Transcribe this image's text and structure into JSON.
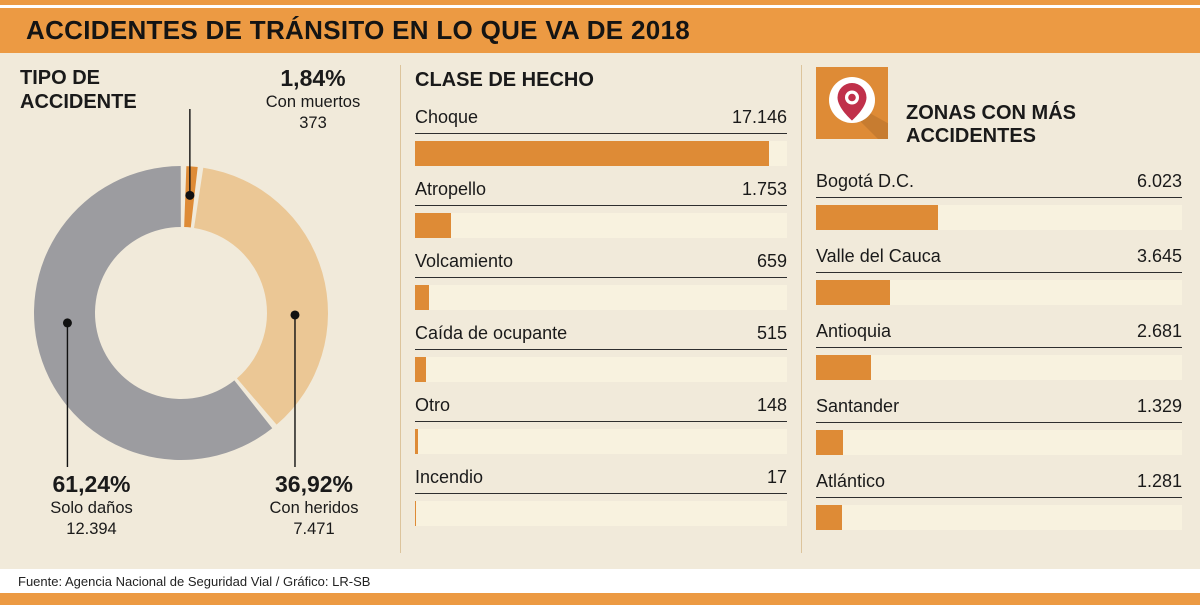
{
  "header": {
    "title": "ACCIDENTES DE TRÁNSITO EN LO QUE VA DE 2018"
  },
  "footer": {
    "source": "Fuente: Agencia Nacional de Seguridad Vial / Gráfico: LR-SB"
  },
  "colors": {
    "header_orange": "#EC9A43",
    "orange": "#DE8B36",
    "tan": "#EBC795",
    "gray": "#9C9CA0",
    "cream": "#F1EADA",
    "track": "#F8F2DF",
    "divider": "#DCC49C",
    "pin_red": "#C0304A",
    "text_dark": "#1A1A1A"
  },
  "chart_data": [
    {
      "type": "pie",
      "title": "TIPO DE ACCIDENTE",
      "donut": true,
      "start_angle": 1,
      "slices": [
        {
          "label": "Con muertos",
          "pct_label": "1,84%",
          "value_label": "373",
          "value": 1.84,
          "color_key": "orange"
        },
        {
          "label": "Con heridos",
          "pct_label": "36,92%",
          "value_label": "7.471",
          "value": 36.92,
          "color_key": "tan"
        },
        {
          "label": "Solo daños",
          "pct_label": "61,24%",
          "value_label": "12.394",
          "value": 61.24,
          "color_key": "gray"
        }
      ]
    },
    {
      "type": "bar",
      "title": "CLASE DE HECHO",
      "orientation": "horizontal",
      "categories": [
        "Choque",
        "Atropello",
        "Volcamiento",
        "Caída de ocupante",
        "Otro",
        "Incendio"
      ],
      "values": [
        17146,
        1753,
        659,
        515,
        148,
        17
      ],
      "value_labels": [
        "17.146",
        "1.753",
        "659",
        "515",
        "148",
        "17"
      ],
      "scale_max": 18000
    },
    {
      "type": "bar",
      "title": "ZONAS CON MÁS ACCIDENTES",
      "orientation": "horizontal",
      "categories": [
        "Bogotá D.C.",
        "Valle del Cauca",
        "Antioquia",
        "Santander",
        "Atlántico"
      ],
      "values": [
        6023,
        3645,
        2681,
        1329,
        1281
      ],
      "value_labels": [
        "6.023",
        "3.645",
        "2.681",
        "1.329",
        "1.281"
      ],
      "scale_max": 18000
    }
  ]
}
